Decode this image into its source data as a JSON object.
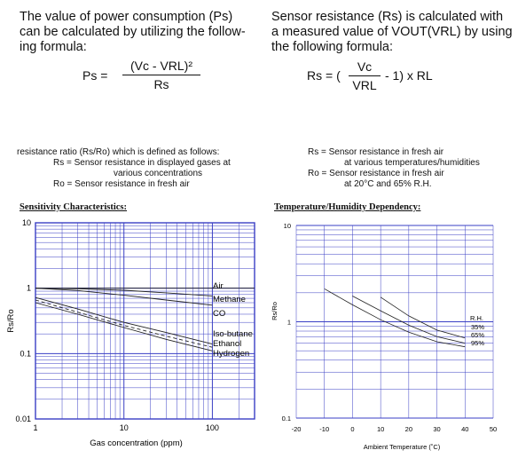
{
  "left_text": {
    "para_lines": [
      "The value of power consumption (Ps)",
      "can be calculated by utilizing the follow-",
      "ing formula:"
    ],
    "formula": {
      "lhs": "Ps =",
      "numerator": "(Vc - VRL)²",
      "denominator": "Rs"
    }
  },
  "right_text": {
    "para_lines": [
      "Sensor resistance (Rs) is calculated with",
      "a measured value of VOUT(VRL) by using",
      "the following formula:"
    ],
    "formula": {
      "lhs": "Rs = (",
      "numerator": "Vc",
      "denominator": "VRL",
      "rhs": "- 1) x RL"
    }
  },
  "left_defs": [
    "resistance ratio (Rs/Ro) which is defined as follows:",
    "Rs = Sensor resistance in displayed gases at",
    "various concentrations",
    "Ro = Sensor resistance in fresh air"
  ],
  "right_defs": [
    "Rs = Sensor resistance in fresh air",
    "at various temperatures/humidities",
    "Ro = Sensor resistance in fresh air",
    "at 20°C and 65% R.H."
  ],
  "chart_data": [
    {
      "type": "line",
      "title": "Sensitivity Characteristics:",
      "xlabel": "Gas concentration (ppm)",
      "ylabel": "Rs/Ro",
      "x_scale": "log",
      "y_scale": "log",
      "xlim": [
        1,
        300
      ],
      "ylim": [
        0.01,
        10
      ],
      "x_ticks": [
        "1",
        "10",
        "100"
      ],
      "y_ticks": [
        "10",
        "1",
        "0.1",
        "0.01"
      ],
      "series": [
        {
          "name": "Air",
          "x": [
            1,
            300
          ],
          "y": [
            1.0,
            1.0
          ]
        },
        {
          "name": "Methane",
          "x": [
            1,
            3,
            10,
            30,
            100,
            300
          ],
          "y": [
            1.0,
            0.98,
            0.93,
            0.85,
            0.76,
            0.68
          ]
        },
        {
          "name": "CO",
          "x": [
            1,
            3,
            10,
            30,
            100,
            300
          ],
          "y": [
            1.0,
            0.92,
            0.78,
            0.66,
            0.55,
            0.47
          ]
        },
        {
          "name": "Iso-butane",
          "x": [
            1,
            3,
            10,
            30,
            100,
            300
          ],
          "y": [
            0.72,
            0.48,
            0.3,
            0.21,
            0.14,
            0.105
          ]
        },
        {
          "name": "Ethanol",
          "x": [
            1,
            3,
            10,
            30,
            100,
            300
          ],
          "y": [
            0.66,
            0.43,
            0.27,
            0.185,
            0.125,
            0.092
          ]
        },
        {
          "name": "Hydrogen",
          "x": [
            1,
            3,
            10,
            30,
            100,
            300
          ],
          "y": [
            0.6,
            0.4,
            0.25,
            0.165,
            0.11,
            0.08
          ]
        }
      ]
    },
    {
      "type": "line",
      "title": "Temperature/Humidity Dependency:",
      "xlabel": "Ambient Temperature (˚C)",
      "ylabel": "Rs/Ro",
      "y_scale": "log",
      "xlim": [
        -20,
        50
      ],
      "ylim": [
        0.1,
        10
      ],
      "x_ticks": [
        "-20",
        "-10",
        "0",
        "10",
        "20",
        "30",
        "40",
        "50"
      ],
      "y_ticks": [
        "10",
        "1",
        "0.1"
      ],
      "legend_title": "R.H.",
      "series": [
        {
          "name": "35%",
          "x": [
            -10,
            0,
            10,
            20,
            30,
            40
          ],
          "y": [
            2.2,
            1.5,
            1.05,
            0.78,
            0.62,
            0.55
          ]
        },
        {
          "name": "65%",
          "x": [
            0,
            10,
            20,
            30,
            40
          ],
          "y": [
            1.85,
            1.3,
            0.92,
            0.7,
            0.6
          ]
        },
        {
          "name": "95%",
          "x": [
            10,
            20,
            30,
            40
          ],
          "y": [
            1.8,
            1.15,
            0.82,
            0.68
          ]
        }
      ]
    }
  ]
}
